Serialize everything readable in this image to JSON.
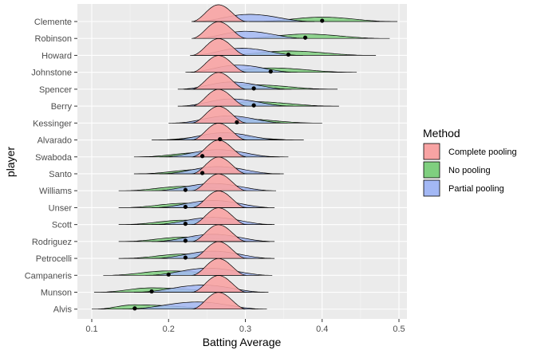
{
  "chart_data": {
    "type": "ridgeline",
    "xlabel": "Batting Average",
    "ylabel": "player",
    "xlim": [
      0.08,
      0.52
    ],
    "x_ticks": [
      "0.1",
      "0.2",
      "0.3",
      "0.4",
      "0.5"
    ],
    "grid": true,
    "legend": {
      "title": "Method",
      "position": "right",
      "entries": [
        {
          "label": "Complete pooling",
          "color": "#F8A3A3"
        },
        {
          "label": "No pooling",
          "color": "#7FCF7F"
        },
        {
          "label": "Partial pooling",
          "color": "#A3B8F5"
        }
      ]
    },
    "players": [
      "Clemente",
      "Robinson",
      "Howard",
      "Johnstone",
      "Spencer",
      "Berry",
      "Kessinger",
      "Alvarado",
      "Swaboda",
      "Santo",
      "Williams",
      "Unser",
      "Scott",
      "Rodriguez",
      "Petrocelli",
      "Campaneris",
      "Munson",
      "Alvis"
    ],
    "observed": [
      0.4,
      0.378,
      0.356,
      0.333,
      0.311,
      0.311,
      0.289,
      0.267,
      0.244,
      0.244,
      0.222,
      0.222,
      0.222,
      0.222,
      0.222,
      0.2,
      0.178,
      0.156
    ],
    "complete_pooling": {
      "mean": 0.265,
      "min": 0.23,
      "max": 0.302
    },
    "no_pooling": {
      "min": [
        0.305,
        0.285,
        0.262,
        0.24,
        0.22,
        0.22,
        0.2,
        0.178,
        0.155,
        0.155,
        0.135,
        0.135,
        0.135,
        0.135,
        0.135,
        0.115,
        0.103,
        0.1
      ],
      "max": [
        0.498,
        0.488,
        0.47,
        0.445,
        0.42,
        0.422,
        0.4,
        0.376,
        0.356,
        0.35,
        0.333,
        0.33,
        0.335,
        0.332,
        0.333,
        0.318,
        0.308,
        0.3
      ]
    },
    "partial_pooling": {
      "mean": [
        0.305,
        0.3,
        0.295,
        0.29,
        0.282,
        0.282,
        0.278,
        0.272,
        0.264,
        0.264,
        0.258,
        0.258,
        0.258,
        0.258,
        0.258,
        0.252,
        0.245,
        0.238
      ],
      "min": [
        0.232,
        0.232,
        0.228,
        0.222,
        0.212,
        0.212,
        0.205,
        0.198,
        0.188,
        0.188,
        0.178,
        0.178,
        0.178,
        0.178,
        0.178,
        0.17,
        0.155,
        0.14
      ],
      "max": [
        0.39,
        0.382,
        0.375,
        0.368,
        0.36,
        0.362,
        0.355,
        0.35,
        0.345,
        0.345,
        0.34,
        0.338,
        0.338,
        0.338,
        0.338,
        0.335,
        0.33,
        0.328
      ]
    }
  }
}
